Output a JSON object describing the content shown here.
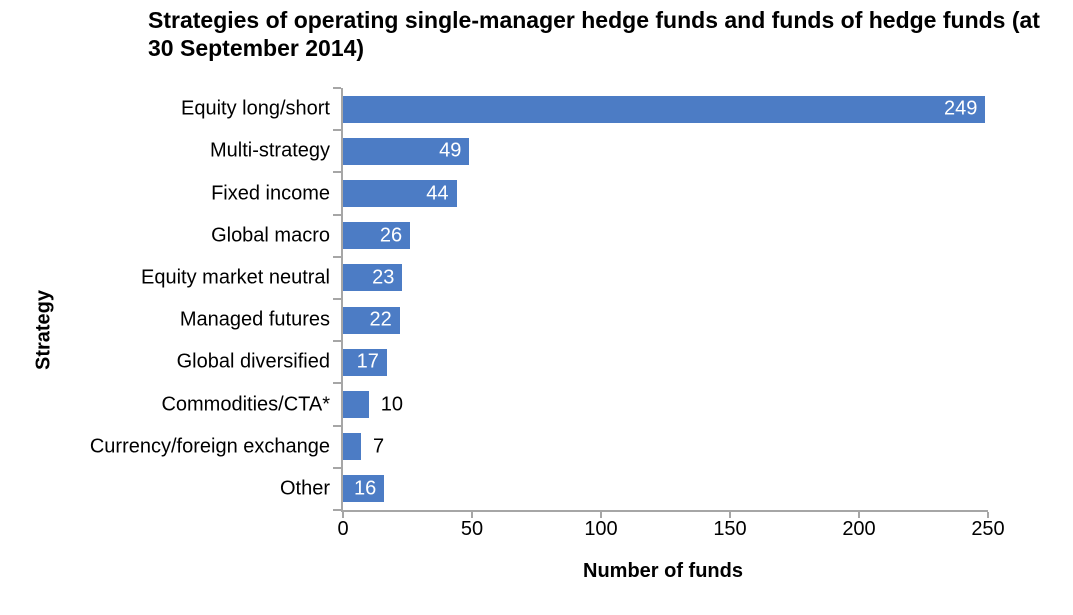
{
  "figure": {
    "background": "#ffffff"
  },
  "chart_data": {
    "type": "bar",
    "orientation": "horizontal",
    "title": "Strategies of operating single-manager hedge funds and funds of hedge funds (at\n30 September 2014)",
    "categories": [
      "Equity long/short",
      "Multi-strategy",
      "Fixed income",
      "Global macro",
      "Equity market neutral",
      "Managed futures",
      "Global diversified",
      "Commodities/CTA*",
      "Currency/foreign exchange",
      "Other"
    ],
    "values": [
      249,
      49,
      44,
      26,
      23,
      22,
      17,
      10,
      7,
      16
    ],
    "xlabel": "Number of funds",
    "ylabel": "Strategy",
    "xlim": [
      0,
      250
    ],
    "xticks": [
      0,
      50,
      100,
      150,
      200,
      250
    ],
    "grid": false,
    "legend": false,
    "bar_color": "#4c7cc5",
    "axis_color": "#a6a6a6",
    "value_label_color_inside": "#ffffff",
    "value_label_color_outside": "#000000"
  }
}
